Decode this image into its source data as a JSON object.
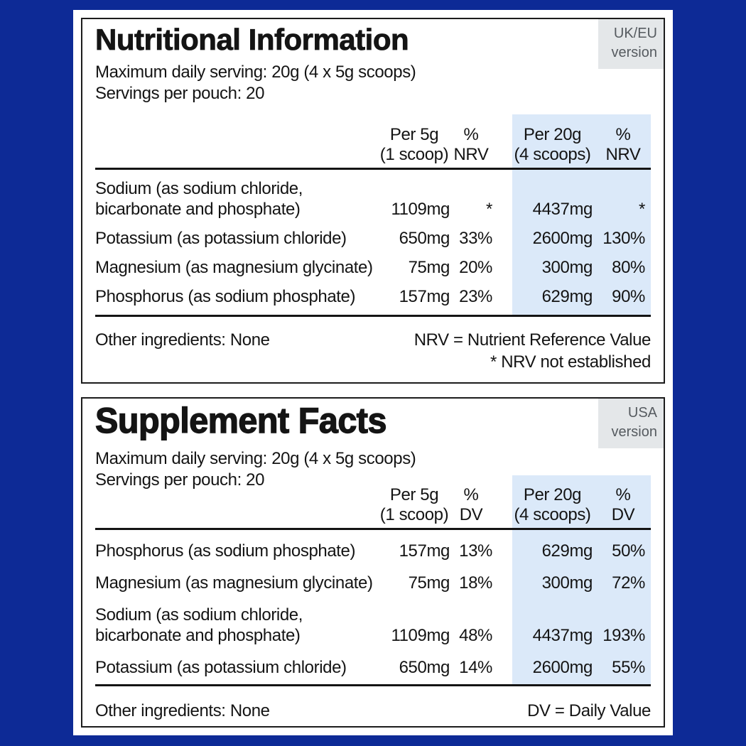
{
  "colors": {
    "background": "#0d2a96",
    "highlight": "#dbe9f9",
    "badge_bg": "#e4e7e9",
    "badge_text": "#565b60",
    "text": "#141414",
    "border": "#1c1c1c"
  },
  "panels": [
    {
      "title": "Nutritional Information",
      "badge": [
        "UK/EU",
        "version"
      ],
      "serving_line_1": "Maximum daily serving: 20g (4 x 5g scoops)",
      "serving_line_2": "Servings per pouch: 20",
      "columns": {
        "per_serving": [
          "Per 5g",
          "(1 scoop)"
        ],
        "pct_serving": [
          "%",
          "NRV"
        ],
        "per_max": [
          "Per 20g",
          "(4 scoops)"
        ],
        "pct_max": [
          "%",
          "NRV"
        ]
      },
      "rows": [
        {
          "name": "Sodium (as sodium chloride, bicarbonate and phosphate)",
          "per_serving": "1109mg",
          "pct_serving": "*",
          "per_max": "4437mg",
          "pct_max": "*"
        },
        {
          "name": "Potassium (as potassium chloride)",
          "per_serving": "650mg",
          "pct_serving": "33%",
          "per_max": "2600mg",
          "pct_max": "130%"
        },
        {
          "name": "Magnesium (as magnesium glycinate)",
          "per_serving": "75mg",
          "pct_serving": "20%",
          "per_max": "300mg",
          "pct_max": "80%"
        },
        {
          "name": "Phosphorus (as sodium phosphate)",
          "per_serving": "157mg",
          "pct_serving": "23%",
          "per_max": "629mg",
          "pct_max": "90%"
        }
      ],
      "footer_left": "Other ingredients: None",
      "footer_right_1": "NRV = Nutrient Reference Value",
      "footer_right_2": "* NRV not established"
    },
    {
      "title": "Supplement Facts",
      "badge": [
        "USA",
        "version"
      ],
      "serving_line_1": "Maximum daily serving: 20g (4 x 5g scoops)",
      "serving_line_2": "Servings per pouch: 20",
      "columns": {
        "per_serving": [
          "Per 5g",
          "(1 scoop)"
        ],
        "pct_serving": [
          "%",
          "DV"
        ],
        "per_max": [
          "Per 20g",
          "(4 scoops)"
        ],
        "pct_max": [
          "%",
          "DV"
        ]
      },
      "rows": [
        {
          "name": "Phosphorus (as sodium phosphate)",
          "per_serving": "157mg",
          "pct_serving": "13%",
          "per_max": "629mg",
          "pct_max": "50%"
        },
        {
          "name": "Magnesium (as magnesium glycinate)",
          "per_serving": "75mg",
          "pct_serving": "18%",
          "per_max": "300mg",
          "pct_max": "72%"
        },
        {
          "name": "Sodium (as sodium chloride, bicarbonate and phosphate)",
          "per_serving": "1109mg",
          "pct_serving": "48%",
          "per_max": "4437mg",
          "pct_max": "193%"
        },
        {
          "name": "Potassium (as potassium chloride)",
          "per_serving": "650mg",
          "pct_serving": "14%",
          "per_max": "2600mg",
          "pct_max": "55%"
        }
      ],
      "footer_left": "Other ingredients: None",
      "footer_right_1": "DV = Daily Value",
      "footer_right_2": ""
    }
  ]
}
